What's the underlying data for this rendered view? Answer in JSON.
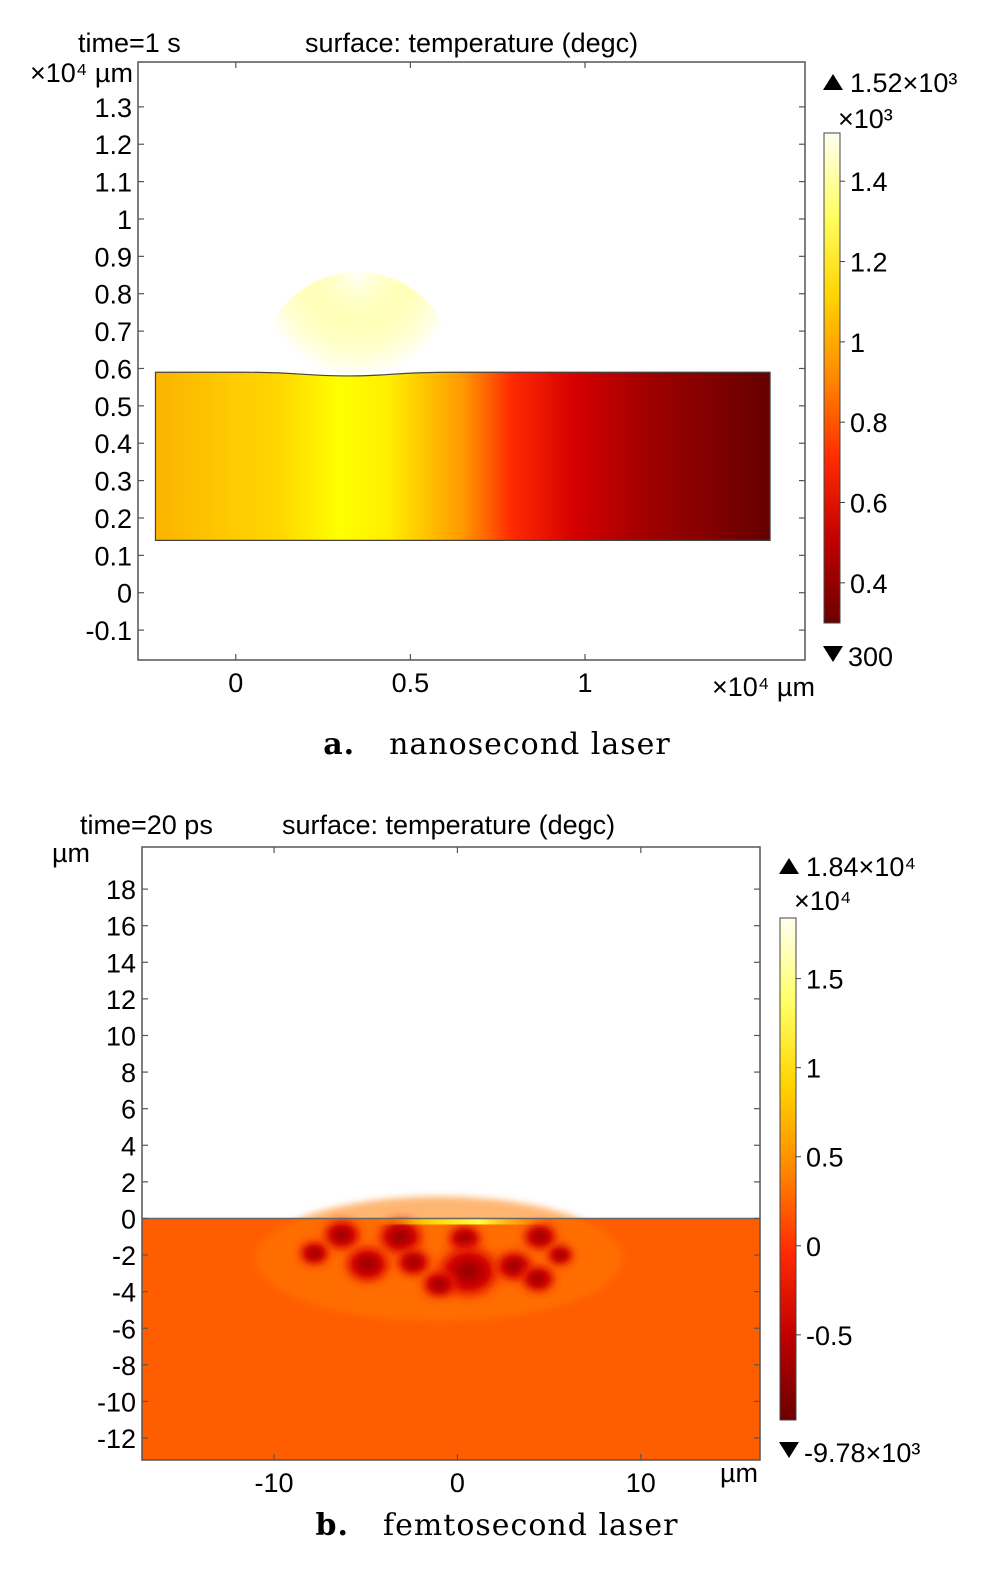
{
  "chart_data": [
    {
      "type": "heatmap",
      "panel_label": "a.",
      "caption": "nanosecond laser",
      "time_label": "time=1 s",
      "title": "surface: temperature (degc)",
      "x_unit": "×10⁴ µm",
      "y_unit": "×10⁴ µm",
      "xlim": [
        -0.28,
        1.63
      ],
      "ylim": [
        -0.18,
        1.42
      ],
      "x_ticks": [
        "0",
        "0.5",
        "1"
      ],
      "x_tick_values": [
        0,
        0.5,
        1
      ],
      "y_ticks": [
        "1.3",
        "1.2",
        "1.1",
        "1",
        "0.9",
        "0.8",
        "0.7",
        "0.6",
        "0.5",
        "0.4",
        "0.3",
        "0.2",
        "0.1",
        "0",
        "-0.1"
      ],
      "y_tick_values": [
        1.3,
        1.2,
        1.1,
        1,
        0.9,
        0.8,
        0.7,
        0.6,
        0.5,
        0.4,
        0.3,
        0.2,
        0.1,
        0,
        -0.1
      ],
      "domain": {
        "x": [
          -0.23,
          1.53
        ],
        "y": [
          0.14,
          0.59
        ]
      },
      "surface_dip": {
        "center_x": 0.32,
        "depth": 0.01,
        "half_width": 0.3
      },
      "colorbar": {
        "max_label": "1.52×10³",
        "min_label": "300",
        "multiplier": "×10³",
        "range": [
          0.3,
          1.52
        ],
        "ticks": [
          "1.4",
          "1.2",
          "1",
          "0.8",
          "0.6",
          "0.4"
        ],
        "tick_values": [
          1.4,
          1.2,
          1,
          0.8,
          0.6,
          0.4
        ],
        "colormap": [
          "#6b0000",
          "#c00000",
          "#ff2a00",
          "#ff8800",
          "#ffd400",
          "#ffff66",
          "#fffff0"
        ]
      }
    },
    {
      "type": "heatmap",
      "panel_label": "b.",
      "caption": "femtosecond laser",
      "time_label": "time=20 ps",
      "title": "surface: temperature (degc)",
      "x_unit": "µm",
      "y_unit": "µm",
      "xlim": [
        -17.2,
        16.5
      ],
      "ylim": [
        -13.2,
        20.3
      ],
      "x_ticks": [
        "-10",
        "0",
        "10"
      ],
      "x_tick_values": [
        -10,
        0,
        10
      ],
      "y_ticks": [
        "18",
        "16",
        "14",
        "12",
        "10",
        "8",
        "6",
        "4",
        "2",
        "0",
        "-2",
        "-4",
        "-6",
        "-8",
        "-10",
        "-12"
      ],
      "y_tick_values": [
        18,
        16,
        14,
        12,
        10,
        8,
        6,
        4,
        2,
        0,
        -2,
        -4,
        -6,
        -8,
        -10,
        -12
      ],
      "domain": {
        "x": [
          -17.2,
          16.5
        ],
        "y": [
          -13.2,
          0
        ]
      },
      "background_color": "#ff5e00",
      "hot_spots": [
        {
          "x": -6.3,
          "y": -0.9,
          "r": 1.1
        },
        {
          "x": -3.1,
          "y": -1.0,
          "r": 1.3
        },
        {
          "x": 0.4,
          "y": -1.1,
          "r": 1.0
        },
        {
          "x": 4.5,
          "y": -1.0,
          "r": 1.0
        },
        {
          "x": -7.8,
          "y": -1.9,
          "r": 0.9
        },
        {
          "x": -4.9,
          "y": -2.5,
          "r": 1.3
        },
        {
          "x": -2.4,
          "y": -2.4,
          "r": 1.0
        },
        {
          "x": 0.6,
          "y": -2.9,
          "r": 1.8
        },
        {
          "x": 3.1,
          "y": -2.6,
          "r": 1.1
        },
        {
          "x": 4.4,
          "y": -3.3,
          "r": 1.0
        },
        {
          "x": 5.6,
          "y": -2.0,
          "r": 0.8
        },
        {
          "x": -1.0,
          "y": -3.6,
          "r": 1.0
        }
      ],
      "colorbar": {
        "max_label": "1.84×10⁴",
        "min_label": "-9.78×10³",
        "multiplier": "×10⁴",
        "range": [
          -0.978,
          1.84
        ],
        "ticks": [
          "1.5",
          "1",
          "0.5",
          "0",
          "-0.5"
        ],
        "tick_values": [
          1.5,
          1,
          0.5,
          0,
          -0.5
        ],
        "colormap": [
          "#6b0000",
          "#c00000",
          "#ff2a00",
          "#ff8800",
          "#ffd400",
          "#ffff66",
          "#fffff0"
        ]
      }
    }
  ]
}
